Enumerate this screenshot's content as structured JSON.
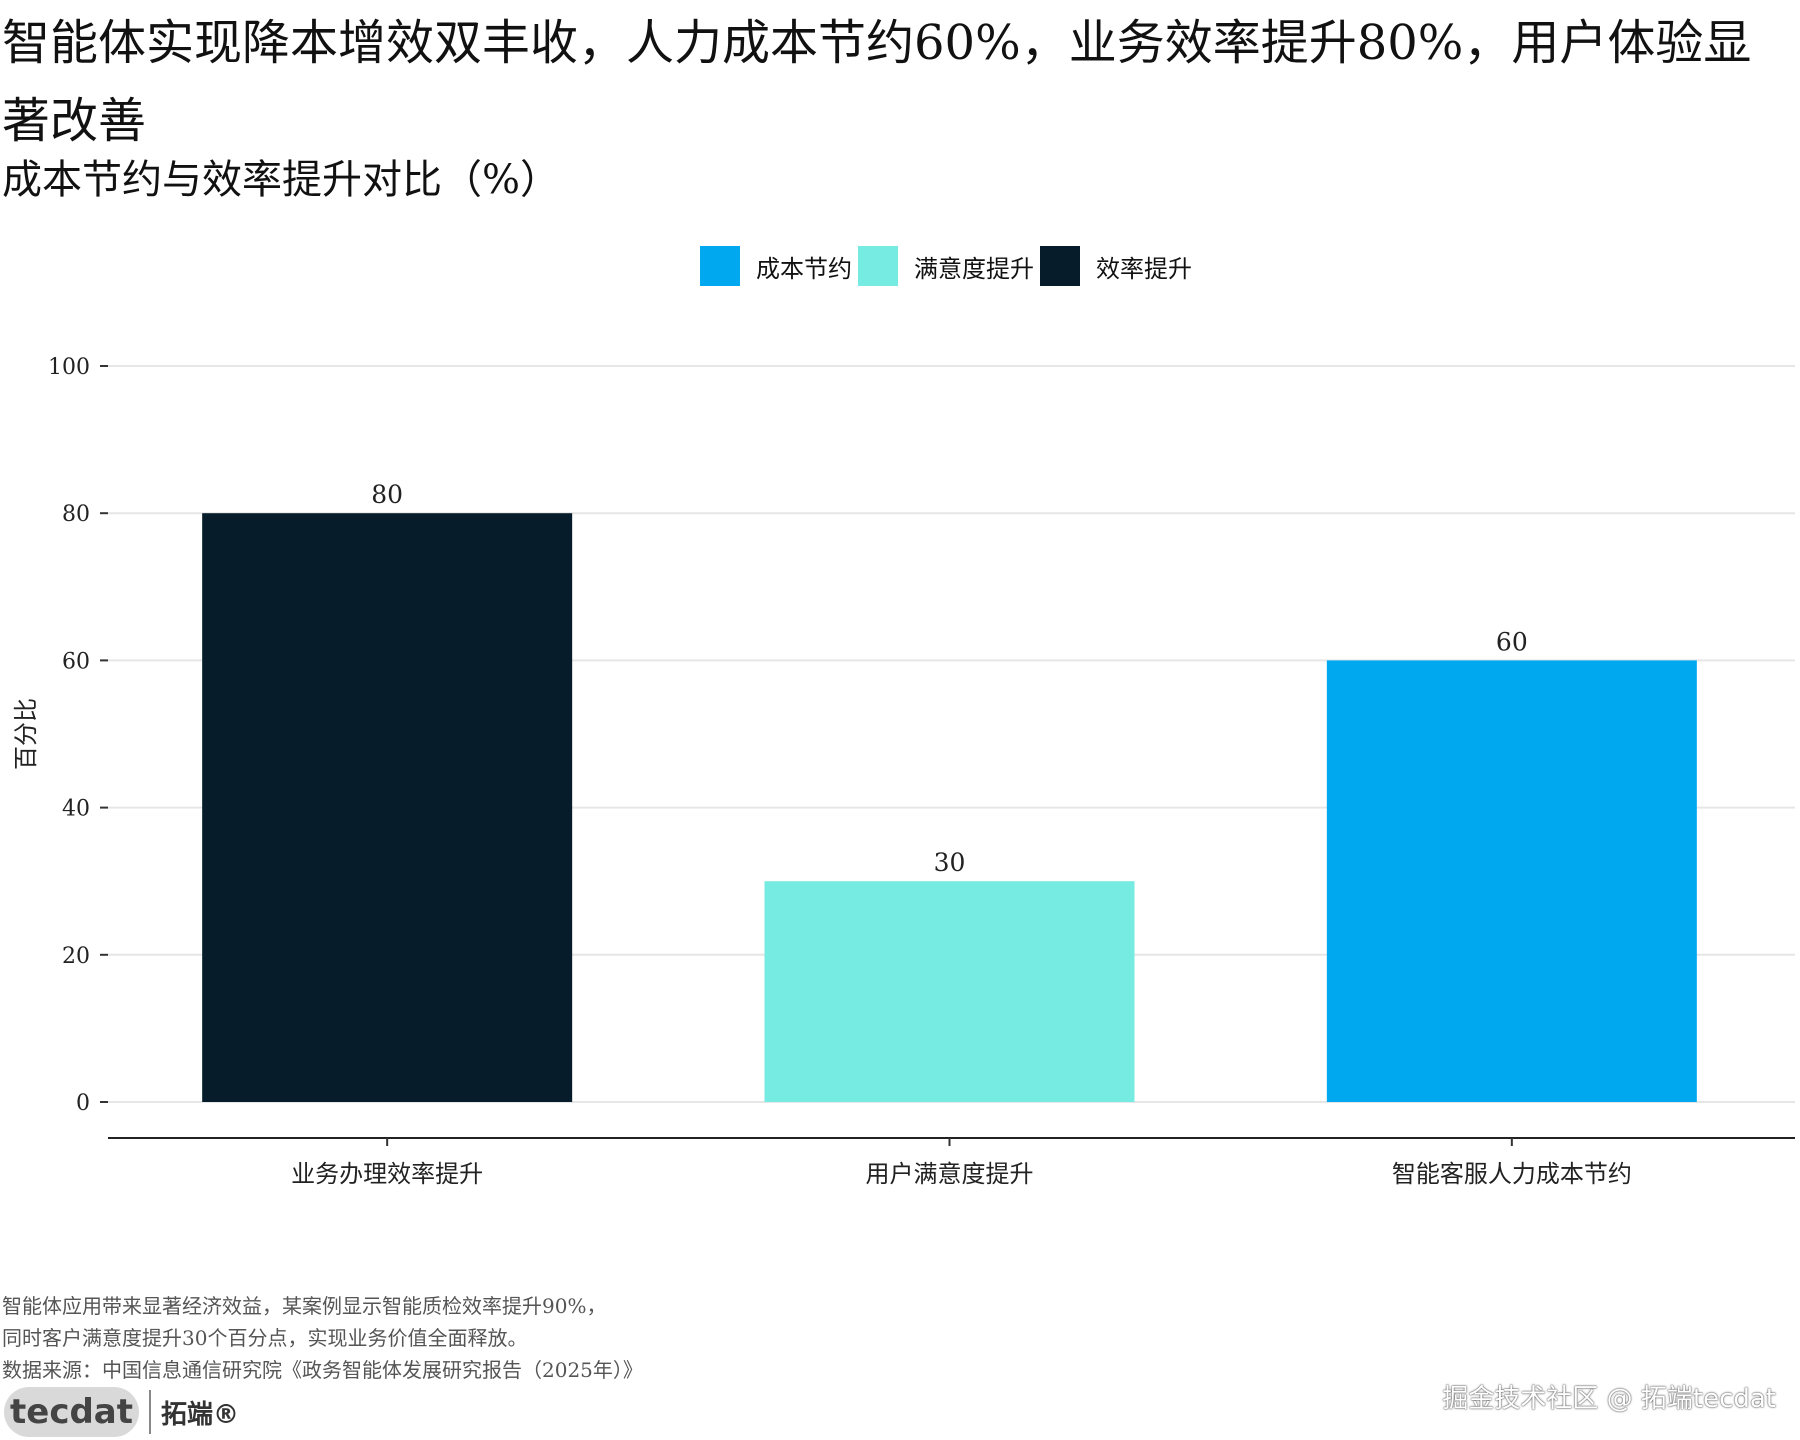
{
  "title": "智能体实现降本增效双丰收，人力成本节约60%，业务效率提升80%，用户体验显著改善",
  "subtitle": "成本节约与效率提升对比（%）",
  "legend": [
    {
      "label": "成本节约",
      "color": "#00A8F0"
    },
    {
      "label": "满意度提升",
      "color": "#76EBE2"
    },
    {
      "label": "效率提升",
      "color": "#061C2A"
    }
  ],
  "chart_data": {
    "type": "bar",
    "categories": [
      "业务办理效率提升",
      "用户满意度提升",
      "智能客服人力成本节约"
    ],
    "values": [
      80,
      30,
      60
    ],
    "bar_groups": [
      "效率提升",
      "满意度提升",
      "成本节约"
    ],
    "ylabel": "百分比",
    "ylim": [
      0,
      100
    ],
    "yticks": [
      0,
      20,
      40,
      60,
      80,
      100
    ],
    "grid": true,
    "legend_position": "top"
  },
  "caption": {
    "line1": "智能体应用带来显著经济效益，某案例显示智能质检效率提升90%，",
    "line2": "同时客户满意度提升30个百分点，实现业务价值全面释放。",
    "line3": "数据来源：中国信息通信研究院《政务智能体发展研究报告（2025年）》"
  },
  "logo": {
    "mark": "tecdat",
    "cn": "拓端®"
  },
  "watermark": "掘金技术社区 @ 拓端tecdat"
}
